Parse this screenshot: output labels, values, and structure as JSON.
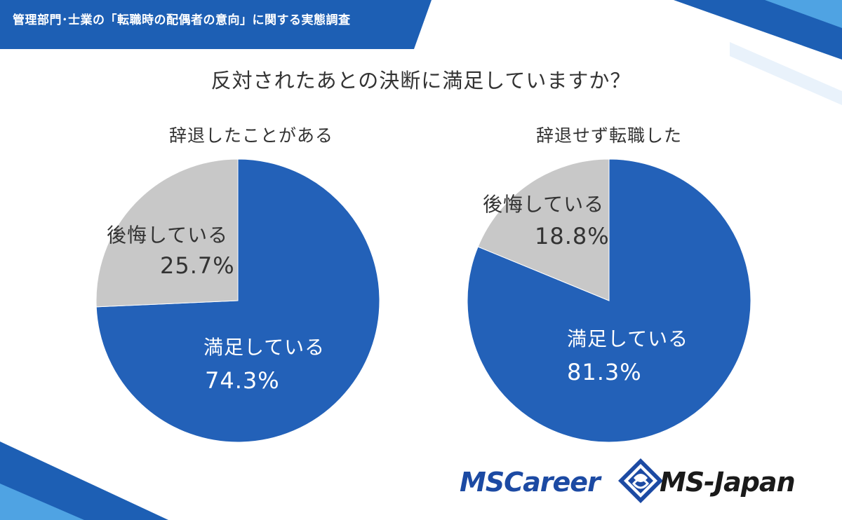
{
  "header": {
    "title": "管理部門･士業の「転職時の配偶者の意向」に関する実態調査"
  },
  "question": "反対されたあとの決断に満足していますか？",
  "colors": {
    "satisfied": "#2361b8",
    "regret": "#c8c8c8",
    "banner": "#1d5fb4",
    "banner_dark": "#0f3f8f",
    "accent_light": "#4fa3e3"
  },
  "chart_data": [
    {
      "type": "pie",
      "title": "辞退したことがある",
      "labels": [
        "満足している",
        "後悔している"
      ],
      "values": [
        74.3,
        25.7
      ],
      "value_labels": [
        "74.3%",
        "25.7%"
      ]
    },
    {
      "type": "pie",
      "title": "辞退せず転職した",
      "labels": [
        "満足している",
        "後悔している"
      ],
      "values": [
        81.3,
        18.8
      ],
      "value_labels": [
        "81.3%",
        "18.8%"
      ]
    }
  ],
  "logos": {
    "left": "MSCareer",
    "right": "MS-Japan"
  }
}
